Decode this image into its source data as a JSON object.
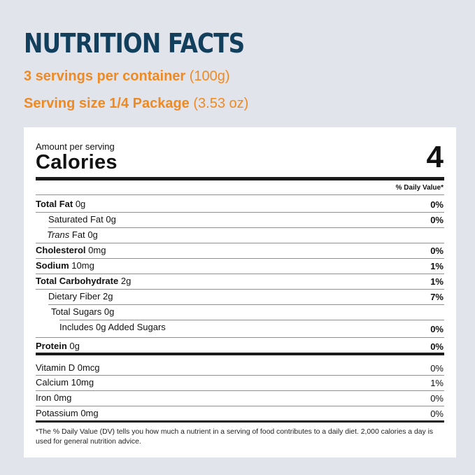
{
  "header": {
    "title": "NUTRITION FACTS",
    "servings": "3 servings per container",
    "servings_weight": "(100g)",
    "serving_size": "Serving size 1/4 Package",
    "serving_size_weight": "(3.53 oz)"
  },
  "label": {
    "amount_per_serving": "Amount per serving",
    "calories_label": "Calories",
    "calories_value": "4",
    "daily_value_header": "% Daily Value*",
    "nutrients": [
      {
        "name": "Total Fat",
        "amount": "0g",
        "dv": "0%"
      },
      {
        "name": "Saturated Fat",
        "amount": "0g",
        "dv": "0%"
      },
      {
        "name": "Trans",
        "suffix": "Fat",
        "amount": "0g",
        "dv": ""
      },
      {
        "name": "Cholesterol",
        "amount": "0mg",
        "dv": "0%"
      },
      {
        "name": "Sodium",
        "amount": "10mg",
        "dv": "1%"
      },
      {
        "name": "Total Carbohydrate",
        "amount": "2g",
        "dv": "1%"
      },
      {
        "name": "Dietary Fiber",
        "amount": "2g",
        "dv": "7%"
      },
      {
        "name": "Total Sugars",
        "amount": "0g",
        "dv": ""
      },
      {
        "name": "Includes 0g Added Sugars",
        "amount": "",
        "dv": "0%"
      },
      {
        "name": "Protein",
        "amount": "0g",
        "dv": "0%"
      }
    ],
    "vitamins": [
      {
        "name": "Vitamin D",
        "amount": "0mcg",
        "dv": "0%"
      },
      {
        "name": "Calcium",
        "amount": "10mg",
        "dv": "1%"
      },
      {
        "name": "Iron",
        "amount": "0mg",
        "dv": "0%"
      },
      {
        "name": "Potassium",
        "amount": "0mg",
        "dv": "0%"
      }
    ],
    "footnote": "*The % Daily Value (DV) tells you how much a nutrient in a serving of food contributes to a daily diet. 2,000 calories a day is used for general nutrition advice."
  },
  "colors": {
    "title": "#123f5c",
    "accent": "#ef8a22",
    "background": "#e2e4ec"
  }
}
